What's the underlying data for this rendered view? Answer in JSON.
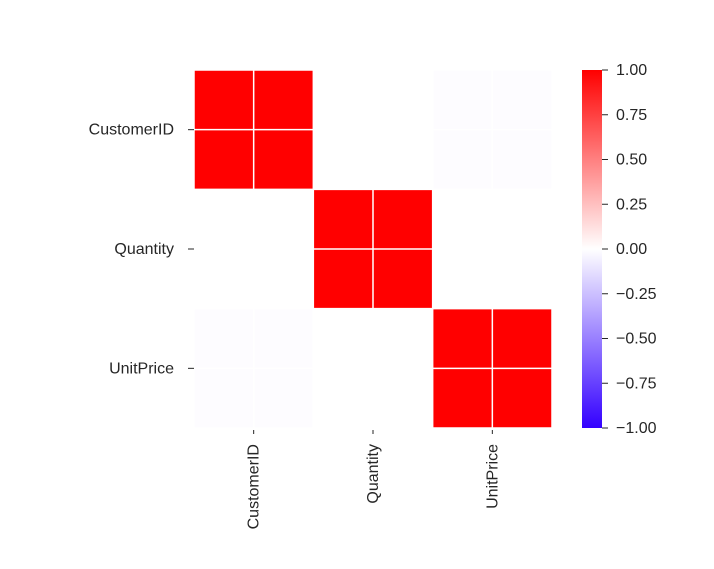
{
  "chart_data": {
    "type": "heatmap",
    "rows": [
      "CustomerID",
      "Quantity",
      "UnitPrice"
    ],
    "columns": [
      "CustomerID",
      "Quantity",
      "UnitPrice"
    ],
    "values": [
      [
        1.0,
        0.0,
        -0.01
      ],
      [
        0.0,
        1.0,
        0.0
      ],
      [
        -0.01,
        0.0,
        1.0
      ]
    ],
    "colorbar": {
      "min": -1.0,
      "max": 1.0,
      "ticks": [
        1.0,
        0.75,
        0.5,
        0.25,
        0.0,
        -0.25,
        -0.5,
        -0.75,
        -1.0
      ],
      "tick_labels": [
        "1.00",
        "0.75",
        "0.50",
        "0.25",
        "0.00",
        "−0.25",
        "−0.50",
        "−0.75",
        "−1.00"
      ],
      "colormap": [
        "#3300ff",
        "#ffffff",
        "#ff0000"
      ]
    },
    "title": "",
    "xlabel": "",
    "ylabel": "",
    "grid": true,
    "grid_color": "#ffffff"
  }
}
